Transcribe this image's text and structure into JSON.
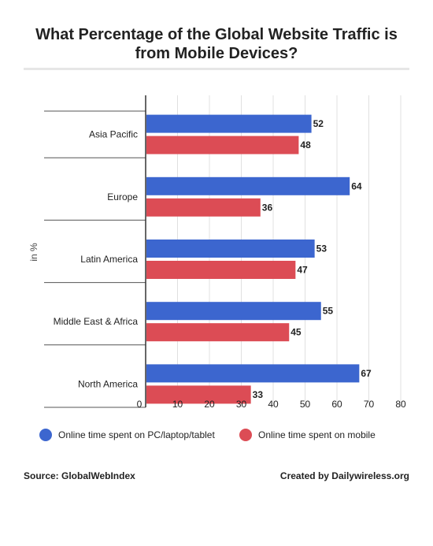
{
  "chart_data": {
    "type": "bar",
    "orientation": "horizontal",
    "title": "What Percentage of the Global Website Traffic is from Mobile Devices?",
    "ylabel": "in %",
    "xlabel": "",
    "categories": [
      "Asia Pacific",
      "Europe",
      "Latin America",
      "Middle East & Africa",
      "North America"
    ],
    "series": [
      {
        "name": "Online time spent on PC/laptop/tablet",
        "values": [
          52,
          64,
          53,
          55,
          67
        ],
        "color": "#3c66cf"
      },
      {
        "name": "Online time spent on mobile",
        "values": [
          48,
          36,
          47,
          45,
          33
        ],
        "color": "#dc4c55"
      }
    ],
    "xlim": [
      0,
      80
    ],
    "xticks": [
      0,
      10,
      20,
      30,
      40,
      50,
      60,
      70,
      80
    ],
    "grid": true,
    "legend_position": "bottom",
    "data_labels": true
  },
  "footer": {
    "source": "Source: GlobalWebIndex",
    "credit": "Created by Dailywireless.org"
  }
}
